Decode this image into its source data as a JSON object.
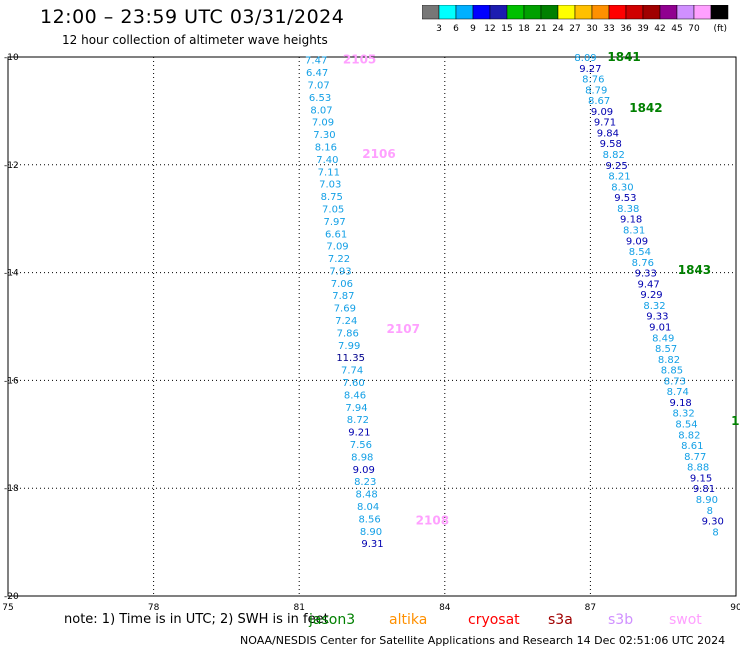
{
  "header": {
    "title": "12:00 – 23:59 UTC 03/31/2024",
    "subtitle": "12 hour collection of altimeter wave heights"
  },
  "colorbar": {
    "unit": "(ft)",
    "colors": [
      "#777777",
      "#00ffff",
      "#00b0ff",
      "#0000ff",
      "#1c1cb0",
      "#00c000",
      "#00a000",
      "#008000",
      "#ffff00",
      "#ffc000",
      "#ff9000",
      "#ff0000",
      "#d00000",
      "#a00000",
      "#900090",
      "#d090ff",
      "#ffa0ff",
      "#000000"
    ],
    "labels": [
      "3",
      "6",
      "9",
      "12",
      "15",
      "18",
      "21",
      "24",
      "27",
      "30",
      "33",
      "36",
      "39",
      "42",
      "45",
      "70"
    ]
  },
  "footer": {
    "note": "note: 1) Time is in UTC; 2) SWH is in feet",
    "credit": "NOAA/NESDIS Center for Satellite Applications and Research    14 Dec 02:51:06 UTC 2024",
    "missions": [
      {
        "name": "jason3",
        "color": "#008000"
      },
      {
        "name": "altika",
        "color": "#ff9000"
      },
      {
        "name": "cryosat",
        "color": "#ff0000"
      },
      {
        "name": "s3a",
        "color": "#a00000"
      },
      {
        "name": "s3b",
        "color": "#d090ff"
      },
      {
        "name": "swot",
        "color": "#ffa0ff"
      }
    ]
  },
  "chart_data": {
    "type": "scatter",
    "xlim": [
      75,
      90
    ],
    "ylim": [
      -20,
      -10
    ],
    "xticks": [
      "75",
      "78",
      "81",
      "84",
      "87",
      "90"
    ],
    "yticks": [
      "-10",
      "-12",
      "-14",
      "-16",
      "-18",
      "-20"
    ],
    "grid": true,
    "time_labels": [
      {
        "text": "2105",
        "x": 81.9,
        "y": -10.05,
        "color": "#ffa0ff"
      },
      {
        "text": "2106",
        "x": 82.3,
        "y": -11.8,
        "color": "#ffa0ff"
      },
      {
        "text": "2107",
        "x": 82.8,
        "y": -15.05,
        "color": "#ffa0ff"
      },
      {
        "text": "2108",
        "x": 83.4,
        "y": -18.6,
        "color": "#ffa0ff"
      },
      {
        "text": "1841",
        "x": 87.35,
        "y": -10.0,
        "color": "#008000"
      },
      {
        "text": "1842",
        "x": 87.8,
        "y": -10.95,
        "color": "#008000"
      },
      {
        "text": "1843",
        "x": 88.8,
        "y": -13.95,
        "color": "#008000"
      },
      {
        "text": "1",
        "x": 89.9,
        "y": -16.75,
        "color": "#008000"
      }
    ],
    "tracks": [
      {
        "name": "swot",
        "points": [
          {
            "x": 81.35,
            "y": -10.05,
            "v": 7.47
          },
          {
            "x": 81.37,
            "y": -10.28,
            "v": 6.47
          },
          {
            "x": 81.4,
            "y": -10.51,
            "v": 7.07
          },
          {
            "x": 81.43,
            "y": -10.74,
            "v": 6.53
          },
          {
            "x": 81.46,
            "y": -10.97,
            "v": 8.07
          },
          {
            "x": 81.49,
            "y": -11.2,
            "v": 7.09
          },
          {
            "x": 81.52,
            "y": -11.43,
            "v": 7.3
          },
          {
            "x": 81.55,
            "y": -11.66,
            "v": 8.16
          },
          {
            "x": 81.58,
            "y": -11.89,
            "v": 7.4
          },
          {
            "x": 81.61,
            "y": -12.12,
            "v": 7.11
          },
          {
            "x": 81.64,
            "y": -12.35,
            "v": 7.03
          },
          {
            "x": 81.67,
            "y": -12.58,
            "v": 8.75
          },
          {
            "x": 81.7,
            "y": -12.81,
            "v": 7.05
          },
          {
            "x": 81.73,
            "y": -13.04,
            "v": 7.97
          },
          {
            "x": 81.76,
            "y": -13.27,
            "v": 6.61
          },
          {
            "x": 81.79,
            "y": -13.5,
            "v": 7.09
          },
          {
            "x": 81.82,
            "y": -13.73,
            "v": 7.22
          },
          {
            "x": 81.85,
            "y": -13.96,
            "v": 7.93
          },
          {
            "x": 81.88,
            "y": -14.19,
            "v": 7.06
          },
          {
            "x": 81.91,
            "y": -14.42,
            "v": 7.87
          },
          {
            "x": 81.94,
            "y": -14.65,
            "v": 7.69
          },
          {
            "x": 81.97,
            "y": -14.88,
            "v": 7.24
          },
          {
            "x": 82.0,
            "y": -15.11,
            "v": 7.86
          },
          {
            "x": 82.03,
            "y": -15.34,
            "v": 7.99
          },
          {
            "x": 82.06,
            "y": -15.57,
            "v": 11.35
          },
          {
            "x": 82.09,
            "y": -15.8,
            "v": 7.74
          },
          {
            "x": 82.12,
            "y": -16.03,
            "v": 7.6
          },
          {
            "x": 82.15,
            "y": -16.26,
            "v": 8.46
          },
          {
            "x": 82.18,
            "y": -16.49,
            "v": 7.94
          },
          {
            "x": 82.21,
            "y": -16.72,
            "v": 8.72
          },
          {
            "x": 82.24,
            "y": -16.95,
            "v": 9.21
          },
          {
            "x": 82.27,
            "y": -17.18,
            "v": 7.56
          },
          {
            "x": 82.3,
            "y": -17.41,
            "v": 8.98
          },
          {
            "x": 82.33,
            "y": -17.64,
            "v": 9.09
          },
          {
            "x": 82.36,
            "y": -17.87,
            "v": 8.23
          },
          {
            "x": 82.39,
            "y": -18.1,
            "v": 8.48
          },
          {
            "x": 82.42,
            "y": -18.33,
            "v": 8.04
          },
          {
            "x": 82.45,
            "y": -18.56,
            "v": 8.56
          },
          {
            "x": 82.48,
            "y": -18.79,
            "v": 8.9
          },
          {
            "x": 82.51,
            "y": -19.02,
            "v": 9.31
          }
        ]
      },
      {
        "name": "jason3",
        "points": [
          {
            "x": 86.9,
            "y": -10.0,
            "v": 8.09
          },
          {
            "x": 87.0,
            "y": -10.2,
            "v": 9.27
          },
          {
            "x": 87.06,
            "y": -10.4,
            "v": 8.76
          },
          {
            "x": 87.12,
            "y": -10.6,
            "v": 8.79
          },
          {
            "x": 87.18,
            "y": -10.8,
            "v": 8.67
          },
          {
            "x": 87.24,
            "y": -11.0,
            "v": 9.09
          },
          {
            "x": 87.3,
            "y": -11.2,
            "v": 9.71
          },
          {
            "x": 87.36,
            "y": -11.4,
            "v": 9.84
          },
          {
            "x": 87.42,
            "y": -11.6,
            "v": 9.58
          },
          {
            "x": 87.48,
            "y": -11.8,
            "v": 8.82
          },
          {
            "x": 87.54,
            "y": -12.0,
            "v": 9.25
          },
          {
            "x": 87.6,
            "y": -12.2,
            "v": 8.21
          },
          {
            "x": 87.66,
            "y": -12.4,
            "v": 8.3
          },
          {
            "x": 87.72,
            "y": -12.6,
            "v": 9.53
          },
          {
            "x": 87.78,
            "y": -12.8,
            "v": 8.38
          },
          {
            "x": 87.84,
            "y": -13.0,
            "v": 9.18
          },
          {
            "x": 87.9,
            "y": -13.2,
            "v": 8.31
          },
          {
            "x": 87.96,
            "y": -13.4,
            "v": 9.09
          },
          {
            "x": 88.02,
            "y": -13.6,
            "v": 8.54
          },
          {
            "x": 88.08,
            "y": -13.8,
            "v": 8.76
          },
          {
            "x": 88.14,
            "y": -14.0,
            "v": 9.33
          },
          {
            "x": 88.2,
            "y": -14.2,
            "v": 9.47
          },
          {
            "x": 88.26,
            "y": -14.4,
            "v": 9.29
          },
          {
            "x": 88.32,
            "y": -14.6,
            "v": 8.32
          },
          {
            "x": 88.38,
            "y": -14.8,
            "v": 9.33
          },
          {
            "x": 88.44,
            "y": -15.0,
            "v": 9.01
          },
          {
            "x": 88.5,
            "y": -15.2,
            "v": 8.49
          },
          {
            "x": 88.56,
            "y": -15.4,
            "v": 8.57
          },
          {
            "x": 88.62,
            "y": -15.6,
            "v": 8.82
          },
          {
            "x": 88.68,
            "y": -15.8,
            "v": 8.85
          },
          {
            "x": 88.74,
            "y": -16.0,
            "v": 8.73
          },
          {
            "x": 88.8,
            "y": -16.2,
            "v": 8.74
          },
          {
            "x": 88.86,
            "y": -16.4,
            "v": 9.18
          },
          {
            "x": 88.92,
            "y": -16.6,
            "v": 8.32
          },
          {
            "x": 88.98,
            "y": -16.8,
            "v": 8.54
          },
          {
            "x": 89.04,
            "y": -17.0,
            "v": 8.82
          },
          {
            "x": 89.1,
            "y": -17.2,
            "v": 8.61
          },
          {
            "x": 89.16,
            "y": -17.4,
            "v": 8.77
          },
          {
            "x": 89.22,
            "y": -17.6,
            "v": 8.88
          },
          {
            "x": 89.28,
            "y": -17.8,
            "v": 9.15
          },
          {
            "x": 89.34,
            "y": -18.0,
            "v": 9.81
          },
          {
            "x": 89.4,
            "y": -18.2,
            "v": 8.9
          },
          {
            "x": 89.46,
            "y": -18.4,
            "v": 8
          },
          {
            "x": 89.52,
            "y": -18.6,
            "v": 9.3
          },
          {
            "x": 89.58,
            "y": -18.8,
            "v": 8
          }
        ]
      }
    ]
  }
}
